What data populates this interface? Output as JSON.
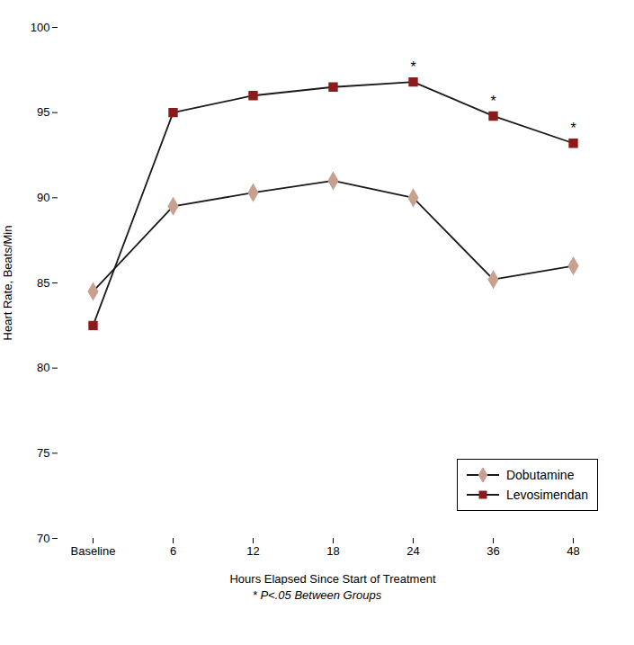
{
  "chart_data": {
    "type": "line",
    "xlabel": "Hours Elapsed Since Start of Treatment",
    "ylabel": "Heart Rate, Beats/Min",
    "categories": [
      "Baseline",
      "6",
      "12",
      "18",
      "24",
      "36",
      "48"
    ],
    "color": "#1a1a1a",
    "series": [
      {
        "name": "Dobutamine",
        "color": "#c8a090",
        "marker": "diamond",
        "values": [
          84.5,
          89.5,
          90.3,
          91.0,
          90.0,
          85.2,
          86.0
        ]
      },
      {
        "name": "Levosimendan",
        "color": "#8b1a1a",
        "marker": "square",
        "values": [
          82.5,
          95.0,
          96.0,
          96.5,
          96.8,
          94.8,
          93.2
        ]
      }
    ],
    "ylim": [
      70,
      100
    ],
    "yticks": [
      70,
      75,
      80,
      85,
      90,
      95,
      100
    ],
    "grid": false,
    "legend": "lower right",
    "annotations": [
      {
        "text": "*",
        "x": "24",
        "series": "Levosimendan"
      },
      {
        "text": "*",
        "x": "36",
        "series": "Levosimendan"
      },
      {
        "text": "*",
        "x": "48",
        "series": "Levosimendan"
      },
      {
        "text": "* P<.05 Between Groups"
      }
    ]
  }
}
